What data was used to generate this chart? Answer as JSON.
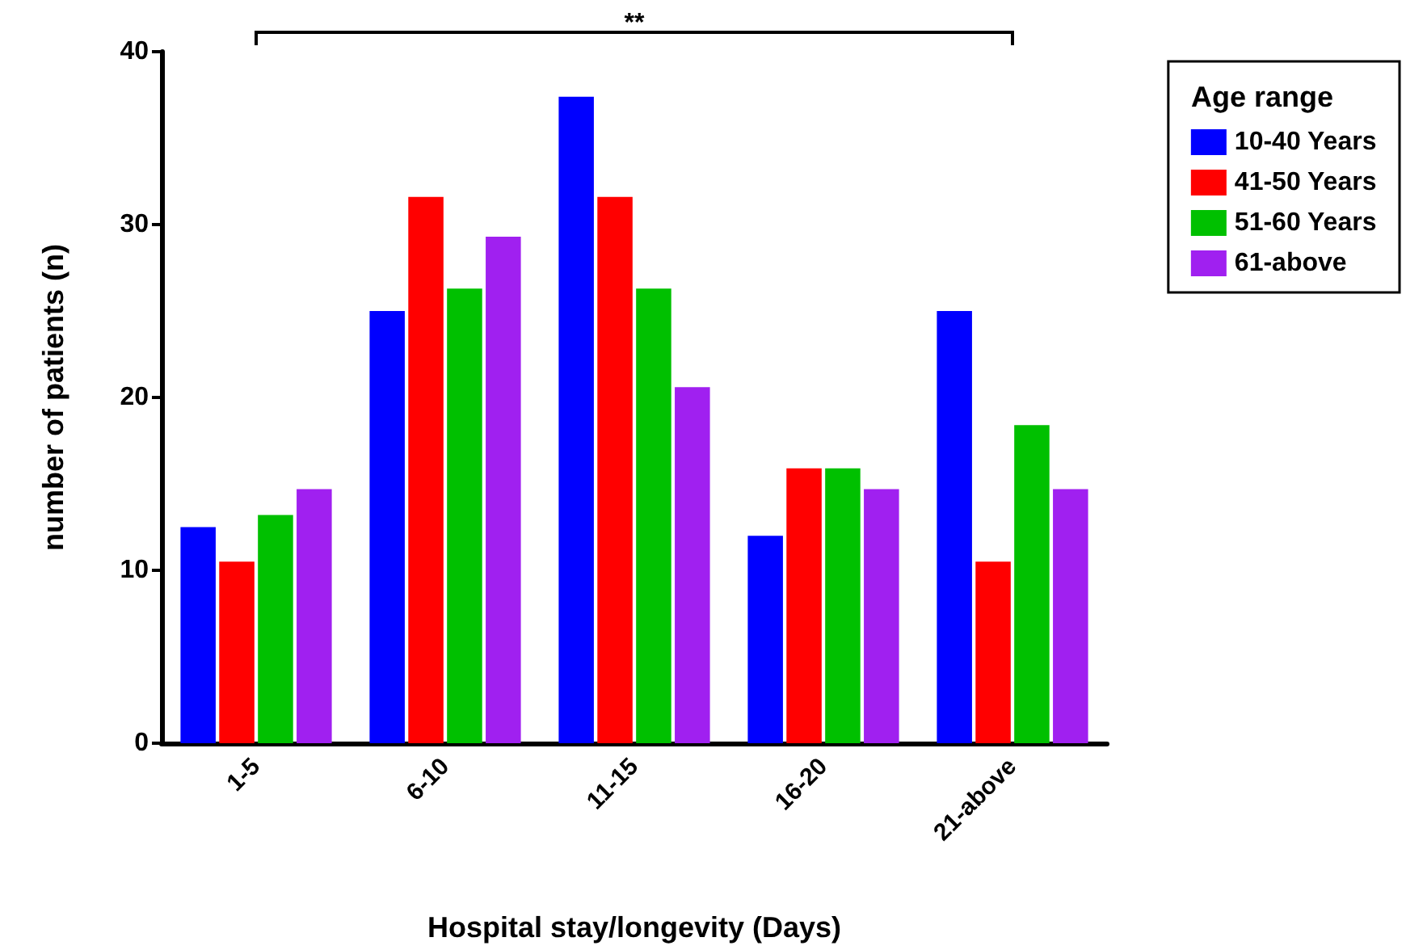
{
  "chart_data": {
    "type": "bar",
    "xlabel": "Hospital stay/longevity (Days)",
    "ylabel": "number of patients (n)",
    "legend_title": "Age range",
    "categories": [
      "1-5",
      "6-10",
      "11-15",
      "16-20",
      "21-above"
    ],
    "series": [
      {
        "name": "10-40 Years",
        "color": "#0000ff",
        "values": [
          12.5,
          25,
          37.4,
          12,
          25
        ]
      },
      {
        "name": "41-50 Years",
        "color": "#ff0000",
        "values": [
          10.5,
          31.6,
          31.6,
          15.9,
          10.5
        ]
      },
      {
        "name": "51-60 Years",
        "color": "#00c000",
        "values": [
          13.2,
          26.3,
          26.3,
          15.9,
          18.4
        ]
      },
      {
        "name": "61-above",
        "color": "#a020f0",
        "values": [
          14.7,
          29.3,
          20.6,
          14.7,
          14.7
        ]
      }
    ],
    "ylim": [
      0,
      40
    ],
    "yticks": [
      0,
      10,
      20,
      30,
      40
    ],
    "grid": false,
    "legend": "top right",
    "annotations": [
      "**"
    ]
  }
}
